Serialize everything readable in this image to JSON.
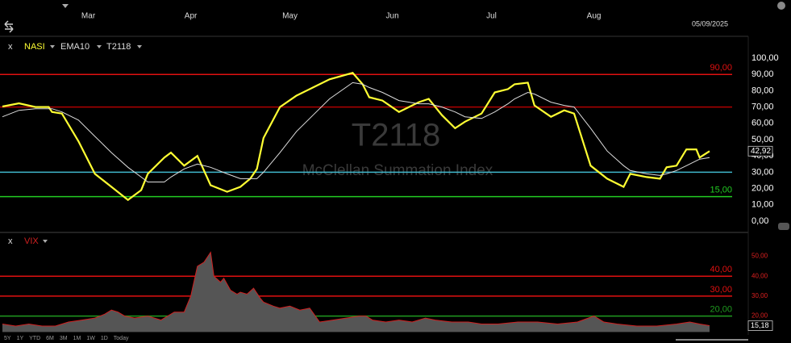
{
  "date": "05/09/2025",
  "ranges": [
    "5Y",
    "1Y",
    "YTD",
    "6M",
    "3M",
    "1M",
    "1W",
    "1D",
    "Today"
  ],
  "chart_data": [
    {
      "type": "line",
      "title": "T2118",
      "subtitle": "McClellan Summation Index",
      "xlim": [
        34,
        248
      ],
      "xticks": [
        {
          "value": 60,
          "label": "Mar"
        },
        {
          "value": 91,
          "label": "Apr"
        },
        {
          "value": 121,
          "label": "May"
        },
        {
          "value": 152,
          "label": "Jun"
        },
        {
          "value": 182,
          "label": "Jul"
        },
        {
          "value": 213,
          "label": "Aug"
        }
      ],
      "ylim": [
        -5,
        105
      ],
      "yticks": [
        {
          "value": 100,
          "label": "100,00"
        },
        {
          "value": 90,
          "label": "90,00"
        },
        {
          "value": 80,
          "label": "80,00"
        },
        {
          "value": 70,
          "label": "70,00"
        },
        {
          "value": 60,
          "label": "60,00"
        },
        {
          "value": 50,
          "label": "50,00"
        },
        {
          "value": 40,
          "label": "40,00"
        },
        {
          "value": 30,
          "label": "30,00"
        },
        {
          "value": 20,
          "label": "20,00"
        },
        {
          "value": 10,
          "label": "10,00"
        },
        {
          "value": 0,
          "label": "0,00"
        }
      ],
      "tick_color": "#ffffff",
      "hlines": [
        {
          "value": 90,
          "label": "90,00",
          "color": "#e01010"
        },
        {
          "value": 70,
          "color": "#b00000"
        },
        {
          "value": 30,
          "color": "#40b8cc"
        },
        {
          "value": 15,
          "label": "15,00",
          "color": "#22cc22"
        }
      ],
      "x": [
        34,
        39,
        44,
        48,
        49,
        52,
        57,
        62,
        67,
        72,
        76,
        78,
        83,
        85,
        89,
        93,
        97,
        102,
        106,
        109,
        111,
        113,
        118,
        123,
        128,
        133,
        140,
        143,
        145,
        149,
        154,
        160,
        163,
        167,
        171,
        174,
        179,
        183,
        187,
        189,
        193,
        195,
        200,
        204,
        207,
        212,
        217,
        222,
        224,
        229,
        233,
        235,
        238,
        241,
        244,
        245,
        248
      ],
      "series": [
        {
          "name": "NASI",
          "color": "#ffff33",
          "values": [
            70.3,
            72.3,
            70,
            70,
            67,
            66,
            49,
            29,
            21,
            13,
            19,
            29,
            39,
            42,
            34,
            40,
            22,
            18,
            21,
            26,
            32,
            51,
            70,
            77,
            82,
            87,
            91,
            84,
            76,
            74,
            67,
            73,
            75,
            65,
            57,
            61,
            66,
            79,
            81,
            84,
            85,
            71,
            64,
            68,
            66,
            34,
            26,
            21,
            29,
            27,
            26,
            33,
            34,
            44,
            44,
            39,
            42.92
          ]
        },
        {
          "name": "EMA10",
          "color": "#dddddd",
          "values": [
            64,
            68,
            69,
            69,
            69,
            67,
            62,
            52,
            42,
            33,
            27,
            24,
            24,
            27,
            32,
            35,
            33,
            29,
            26,
            26,
            26,
            30,
            42,
            55,
            65,
            75,
            85,
            84,
            82,
            79,
            74,
            72,
            72,
            70,
            67,
            64,
            63,
            67,
            72,
            75,
            79,
            78,
            73,
            71,
            70,
            57,
            43,
            34,
            31,
            29,
            28,
            29,
            31,
            34,
            37,
            38,
            39
          ]
        }
      ],
      "current": {
        "value": 42.92,
        "label": "42,92"
      }
    },
    {
      "type": "area",
      "xlim": [
        34,
        248
      ],
      "ylim": [
        12,
        59
      ],
      "yticks": [
        {
          "value": 50,
          "label": "50,00"
        },
        {
          "value": 40,
          "label": "40,00"
        },
        {
          "value": 30,
          "label": "30,00"
        },
        {
          "value": 20,
          "label": "20,00"
        }
      ],
      "tick_color": "#e02020",
      "hlines": [
        {
          "value": 40,
          "label": "40,00",
          "color": "#e01010"
        },
        {
          "value": 30,
          "label": "30,00",
          "color": "#e01010"
        },
        {
          "value": 20,
          "label": "20,00",
          "color": "#1f9a1f"
        }
      ],
      "x": [
        34,
        38,
        42,
        46,
        50,
        54,
        58,
        62,
        65,
        67,
        69,
        71,
        74,
        78,
        82,
        86,
        89,
        91,
        93,
        95,
        97,
        98,
        100,
        101,
        103,
        105,
        106,
        108,
        110,
        112,
        113,
        116,
        118,
        121,
        124,
        127,
        130,
        134,
        138,
        142,
        144,
        146,
        150,
        154,
        158,
        162,
        165,
        170,
        175,
        179,
        184,
        190,
        196,
        202,
        208,
        213,
        216,
        220,
        226,
        232,
        238,
        242,
        245,
        248
      ],
      "series": [
        {
          "name": "VIX",
          "color": "#d02020",
          "fill": "#555555",
          "values": [
            16,
            15,
            16,
            15,
            15,
            17,
            18,
            19,
            21,
            23,
            22,
            20,
            19,
            20,
            18,
            22,
            22,
            30,
            45,
            47,
            52,
            40,
            37,
            39,
            33,
            31,
            32,
            31,
            34,
            29,
            27,
            25,
            24,
            25,
            23,
            24,
            17,
            18,
            19,
            20,
            20,
            18,
            17,
            18,
            17,
            19,
            18,
            17,
            17,
            16,
            16,
            17,
            17,
            16,
            17,
            20,
            17,
            16,
            15,
            15,
            16,
            17,
            16,
            15.18
          ]
        }
      ],
      "current": {
        "value": 15.18,
        "label": "15,18"
      }
    }
  ]
}
